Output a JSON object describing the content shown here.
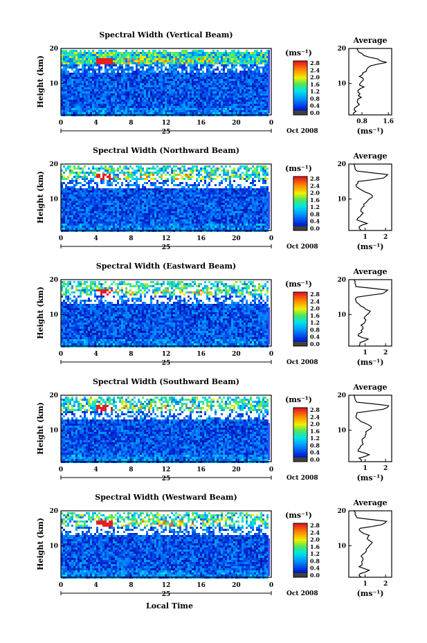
{
  "figure": {
    "xlabel": "Local Time",
    "ylabel": "Height (km)",
    "date_label": "Oct 2008",
    "day_label": "25",
    "units_label": "(ms⁻¹)",
    "avg_title": "Average"
  },
  "chart_data": [
    {
      "type": "heatmap",
      "title": "Spectral Width (Vertical Beam)",
      "xlabel": "Local Time",
      "ylabel": "Height (km)",
      "x_ticks": [
        "0",
        "4",
        "8",
        "12",
        "16",
        "20",
        "0"
      ],
      "y_ticks": [
        "10",
        "20"
      ],
      "xlim": [
        0,
        24
      ],
      "ylim": [
        1,
        20
      ],
      "colorbar": {
        "label": "(ms⁻¹)",
        "ticks": [
          "0.0",
          "0.4",
          "0.8",
          "1.2",
          "1.6",
          "2.0",
          "2.4",
          "2.8"
        ],
        "range": [
          0,
          2.8
        ]
      },
      "description_bands": [
        {
          "height": 17,
          "time": 4.5,
          "value": 2.8
        }
      ],
      "profile": {
        "title": "Average",
        "xlabel": "(ms⁻¹)",
        "x_ticks": [
          "0.8",
          "1.6"
        ],
        "xlim": [
          0.4,
          1.7
        ],
        "heights": [
          1,
          2,
          3,
          4,
          5,
          6,
          7,
          8,
          9,
          10,
          11,
          12,
          13,
          14,
          15,
          16,
          17,
          18,
          19,
          20
        ],
        "values": [
          0.55,
          0.62,
          0.58,
          0.72,
          0.66,
          0.78,
          0.74,
          0.68,
          0.86,
          0.74,
          0.84,
          0.72,
          0.82,
          0.94,
          1.05,
          1.55,
          1.28,
          0.85,
          0.7,
          0.65
        ]
      }
    },
    {
      "type": "heatmap",
      "title": "Spectral Width (Northward Beam)",
      "xlabel": "Local Time",
      "ylabel": "Height (km)",
      "x_ticks": [
        "0",
        "4",
        "8",
        "12",
        "16",
        "20",
        "0"
      ],
      "y_ticks": [
        "10",
        "20"
      ],
      "xlim": [
        0,
        24
      ],
      "ylim": [
        1,
        20
      ],
      "colorbar": {
        "label": "(ms⁻¹)",
        "ticks": [
          "0.0",
          "0.4",
          "0.8",
          "1.2",
          "1.6",
          "2.0",
          "2.4",
          "2.8"
        ],
        "range": [
          0,
          2.8
        ]
      },
      "profile": {
        "title": "Average",
        "xlabel": "(ms⁻¹)",
        "x_ticks": [
          "1",
          "2"
        ],
        "xlim": [
          0.2,
          2.3
        ],
        "heights": [
          1,
          2,
          3,
          4,
          5,
          6,
          7,
          8,
          9,
          10,
          11,
          12,
          13,
          14,
          15,
          16,
          17,
          18,
          19,
          20
        ],
        "values": [
          0.8,
          0.7,
          1.1,
          0.6,
          0.75,
          0.9,
          0.8,
          0.95,
          1.05,
          1.2,
          1.35,
          1.0,
          0.7,
          0.55,
          0.65,
          1.9,
          2.1,
          0.6,
          0.5,
          0.45
        ]
      }
    },
    {
      "type": "heatmap",
      "title": "Spectral Width (Eastward Beam)",
      "xlabel": "Local Time",
      "ylabel": "Height (km)",
      "x_ticks": [
        "0",
        "4",
        "8",
        "12",
        "16",
        "20",
        "0"
      ],
      "y_ticks": [
        "10",
        "20"
      ],
      "xlim": [
        0,
        24
      ],
      "ylim": [
        1,
        20
      ],
      "colorbar": {
        "label": "(ms⁻¹)",
        "ticks": [
          "0.0",
          "0.4",
          "0.8",
          "1.2",
          "1.6",
          "2.0",
          "2.4",
          "2.8"
        ],
        "range": [
          0,
          2.8
        ]
      },
      "profile": {
        "title": "Average",
        "xlabel": "(ms⁻¹)",
        "x_ticks": [
          "1",
          "2"
        ],
        "xlim": [
          0.2,
          2.3
        ],
        "heights": [
          1,
          2,
          3,
          4,
          5,
          6,
          7,
          8,
          9,
          10,
          11,
          12,
          13,
          14,
          15,
          16,
          17,
          18,
          19,
          20
        ],
        "values": [
          0.7,
          0.75,
          1.15,
          0.65,
          0.85,
          0.9,
          0.8,
          1.0,
          0.95,
          1.1,
          1.25,
          0.95,
          0.7,
          0.55,
          0.6,
          1.85,
          2.1,
          0.55,
          0.5,
          0.45
        ]
      }
    },
    {
      "type": "heatmap",
      "title": "Spectral Width (Southward Beam)",
      "xlabel": "Local Time",
      "ylabel": "Height (km)",
      "x_ticks": [
        "0",
        "4",
        "8",
        "12",
        "16",
        "20",
        "0"
      ],
      "y_ticks": [
        "10",
        "20"
      ],
      "xlim": [
        0,
        24
      ],
      "ylim": [
        1,
        20
      ],
      "colorbar": {
        "label": "(ms⁻¹)",
        "ticks": [
          "0.0",
          "0.4",
          "0.8",
          "1.2",
          "1.6",
          "2.0",
          "2.4",
          "2.8"
        ],
        "range": [
          0,
          2.8
        ]
      },
      "profile": {
        "title": "Average",
        "xlabel": "(ms⁻¹)",
        "x_ticks": [
          "1",
          "2"
        ],
        "xlim": [
          0.2,
          2.3
        ],
        "heights": [
          1,
          2,
          3,
          4,
          5,
          6,
          7,
          8,
          9,
          10,
          11,
          12,
          13,
          14,
          15,
          16,
          17,
          18,
          19,
          20
        ],
        "values": [
          0.8,
          0.7,
          1.2,
          0.65,
          0.75,
          0.9,
          0.85,
          1.0,
          1.05,
          1.15,
          1.3,
          1.0,
          0.7,
          0.55,
          0.6,
          1.9,
          2.15,
          0.6,
          0.5,
          0.45
        ]
      }
    },
    {
      "type": "heatmap",
      "title": "Spectral Width (Westward Beam)",
      "xlabel": "Local Time",
      "ylabel": "Height (km)",
      "x_ticks": [
        "0",
        "4",
        "8",
        "12",
        "16",
        "20",
        "0"
      ],
      "y_ticks": [
        "10",
        "20"
      ],
      "xlim": [
        0,
        24
      ],
      "ylim": [
        1,
        20
      ],
      "colorbar": {
        "label": "(ms⁻¹)",
        "ticks": [
          "0.0",
          "0.4",
          "0.8",
          "1.2",
          "1.6",
          "2.0",
          "2.4",
          "2.8"
        ],
        "range": [
          0,
          2.8
        ]
      },
      "profile": {
        "title": "Average",
        "xlabel": "(ms⁻¹)",
        "x_ticks": [
          "1",
          "2"
        ],
        "xlim": [
          0.2,
          2.3
        ],
        "heights": [
          1,
          2,
          3,
          4,
          5,
          6,
          7,
          8,
          9,
          10,
          11,
          12,
          13,
          14,
          15,
          16,
          17,
          18,
          19,
          20
        ],
        "values": [
          0.8,
          0.75,
          1.2,
          0.7,
          0.85,
          0.9,
          0.8,
          1.0,
          1.05,
          1.2,
          1.35,
          1.1,
          1.2,
          0.8,
          0.75,
          1.8,
          2.05,
          0.6,
          0.5,
          0.45
        ]
      }
    }
  ]
}
